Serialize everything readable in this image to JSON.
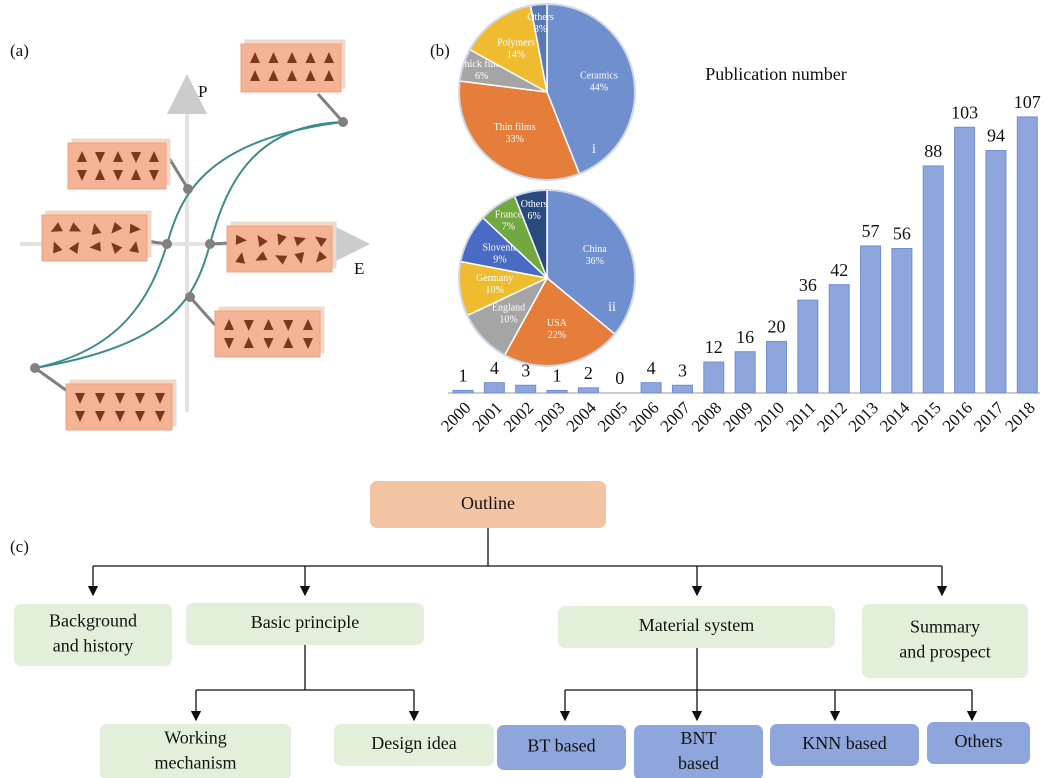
{
  "panel_labels": [
    "(a)",
    "(b)",
    "(c)"
  ],
  "diagram_a": {
    "y_axis": "P",
    "x_axis": "E"
  },
  "chart_data": [
    {
      "type": "bar",
      "title": "Publication number",
      "categories": [
        "2000",
        "2001",
        "2002",
        "2003",
        "2004",
        "2005",
        "2006",
        "2007",
        "2008",
        "2009",
        "2010",
        "2011",
        "2012",
        "2013",
        "2014",
        "2015",
        "2016",
        "2017",
        "2018"
      ],
      "values": [
        1,
        4,
        3,
        1,
        2,
        0,
        4,
        3,
        12,
        16,
        20,
        36,
        42,
        57,
        56,
        88,
        103,
        94,
        107
      ],
      "color": "#8ea6dc"
    },
    {
      "type": "pie",
      "label": "i",
      "categories": [
        "Ceramics",
        "Thin films",
        "Thick films",
        "Polymers",
        "Others"
      ],
      "values": [
        44,
        33,
        6,
        14,
        3
      ],
      "value_labels": [
        "44%",
        "33%",
        "6%",
        "14%",
        "3%"
      ],
      "colors": [
        "#6f8fcf",
        "#e57e3a",
        "#a5a5a5",
        "#efbc30",
        "#5a78b8"
      ]
    },
    {
      "type": "pie",
      "label": "ii",
      "categories": [
        "China",
        "USA",
        "England",
        "Germany",
        "Slovenia",
        "France",
        "Others"
      ],
      "values": [
        36,
        22,
        10,
        10,
        9,
        7,
        6
      ],
      "value_labels": [
        "36%",
        "22%",
        "10%",
        "10%",
        "9%",
        "7%",
        "6%"
      ],
      "colors": [
        "#6f8fcf",
        "#e57e3a",
        "#a5a5a5",
        "#efbc30",
        "#4a6bc4",
        "#72a840",
        "#284a7c"
      ]
    }
  ],
  "outline": {
    "root": "Outline",
    "nodes": [
      {
        "lines": [
          "Background",
          "and history"
        ]
      },
      {
        "lines": [
          "Basic principle"
        ],
        "children": [
          {
            "lines": [
              "Working",
              "mechanism"
            ]
          },
          {
            "lines": [
              "Design idea"
            ]
          }
        ]
      },
      {
        "lines": [
          "Material system"
        ],
        "children": [
          {
            "lines": [
              "BT based"
            ]
          },
          {
            "lines": [
              "BNT",
              "based"
            ]
          },
          {
            "lines": [
              "KNN based"
            ]
          },
          {
            "lines": [
              "Others"
            ]
          }
        ]
      },
      {
        "lines": [
          "Summary",
          "and prospect"
        ]
      }
    ]
  }
}
